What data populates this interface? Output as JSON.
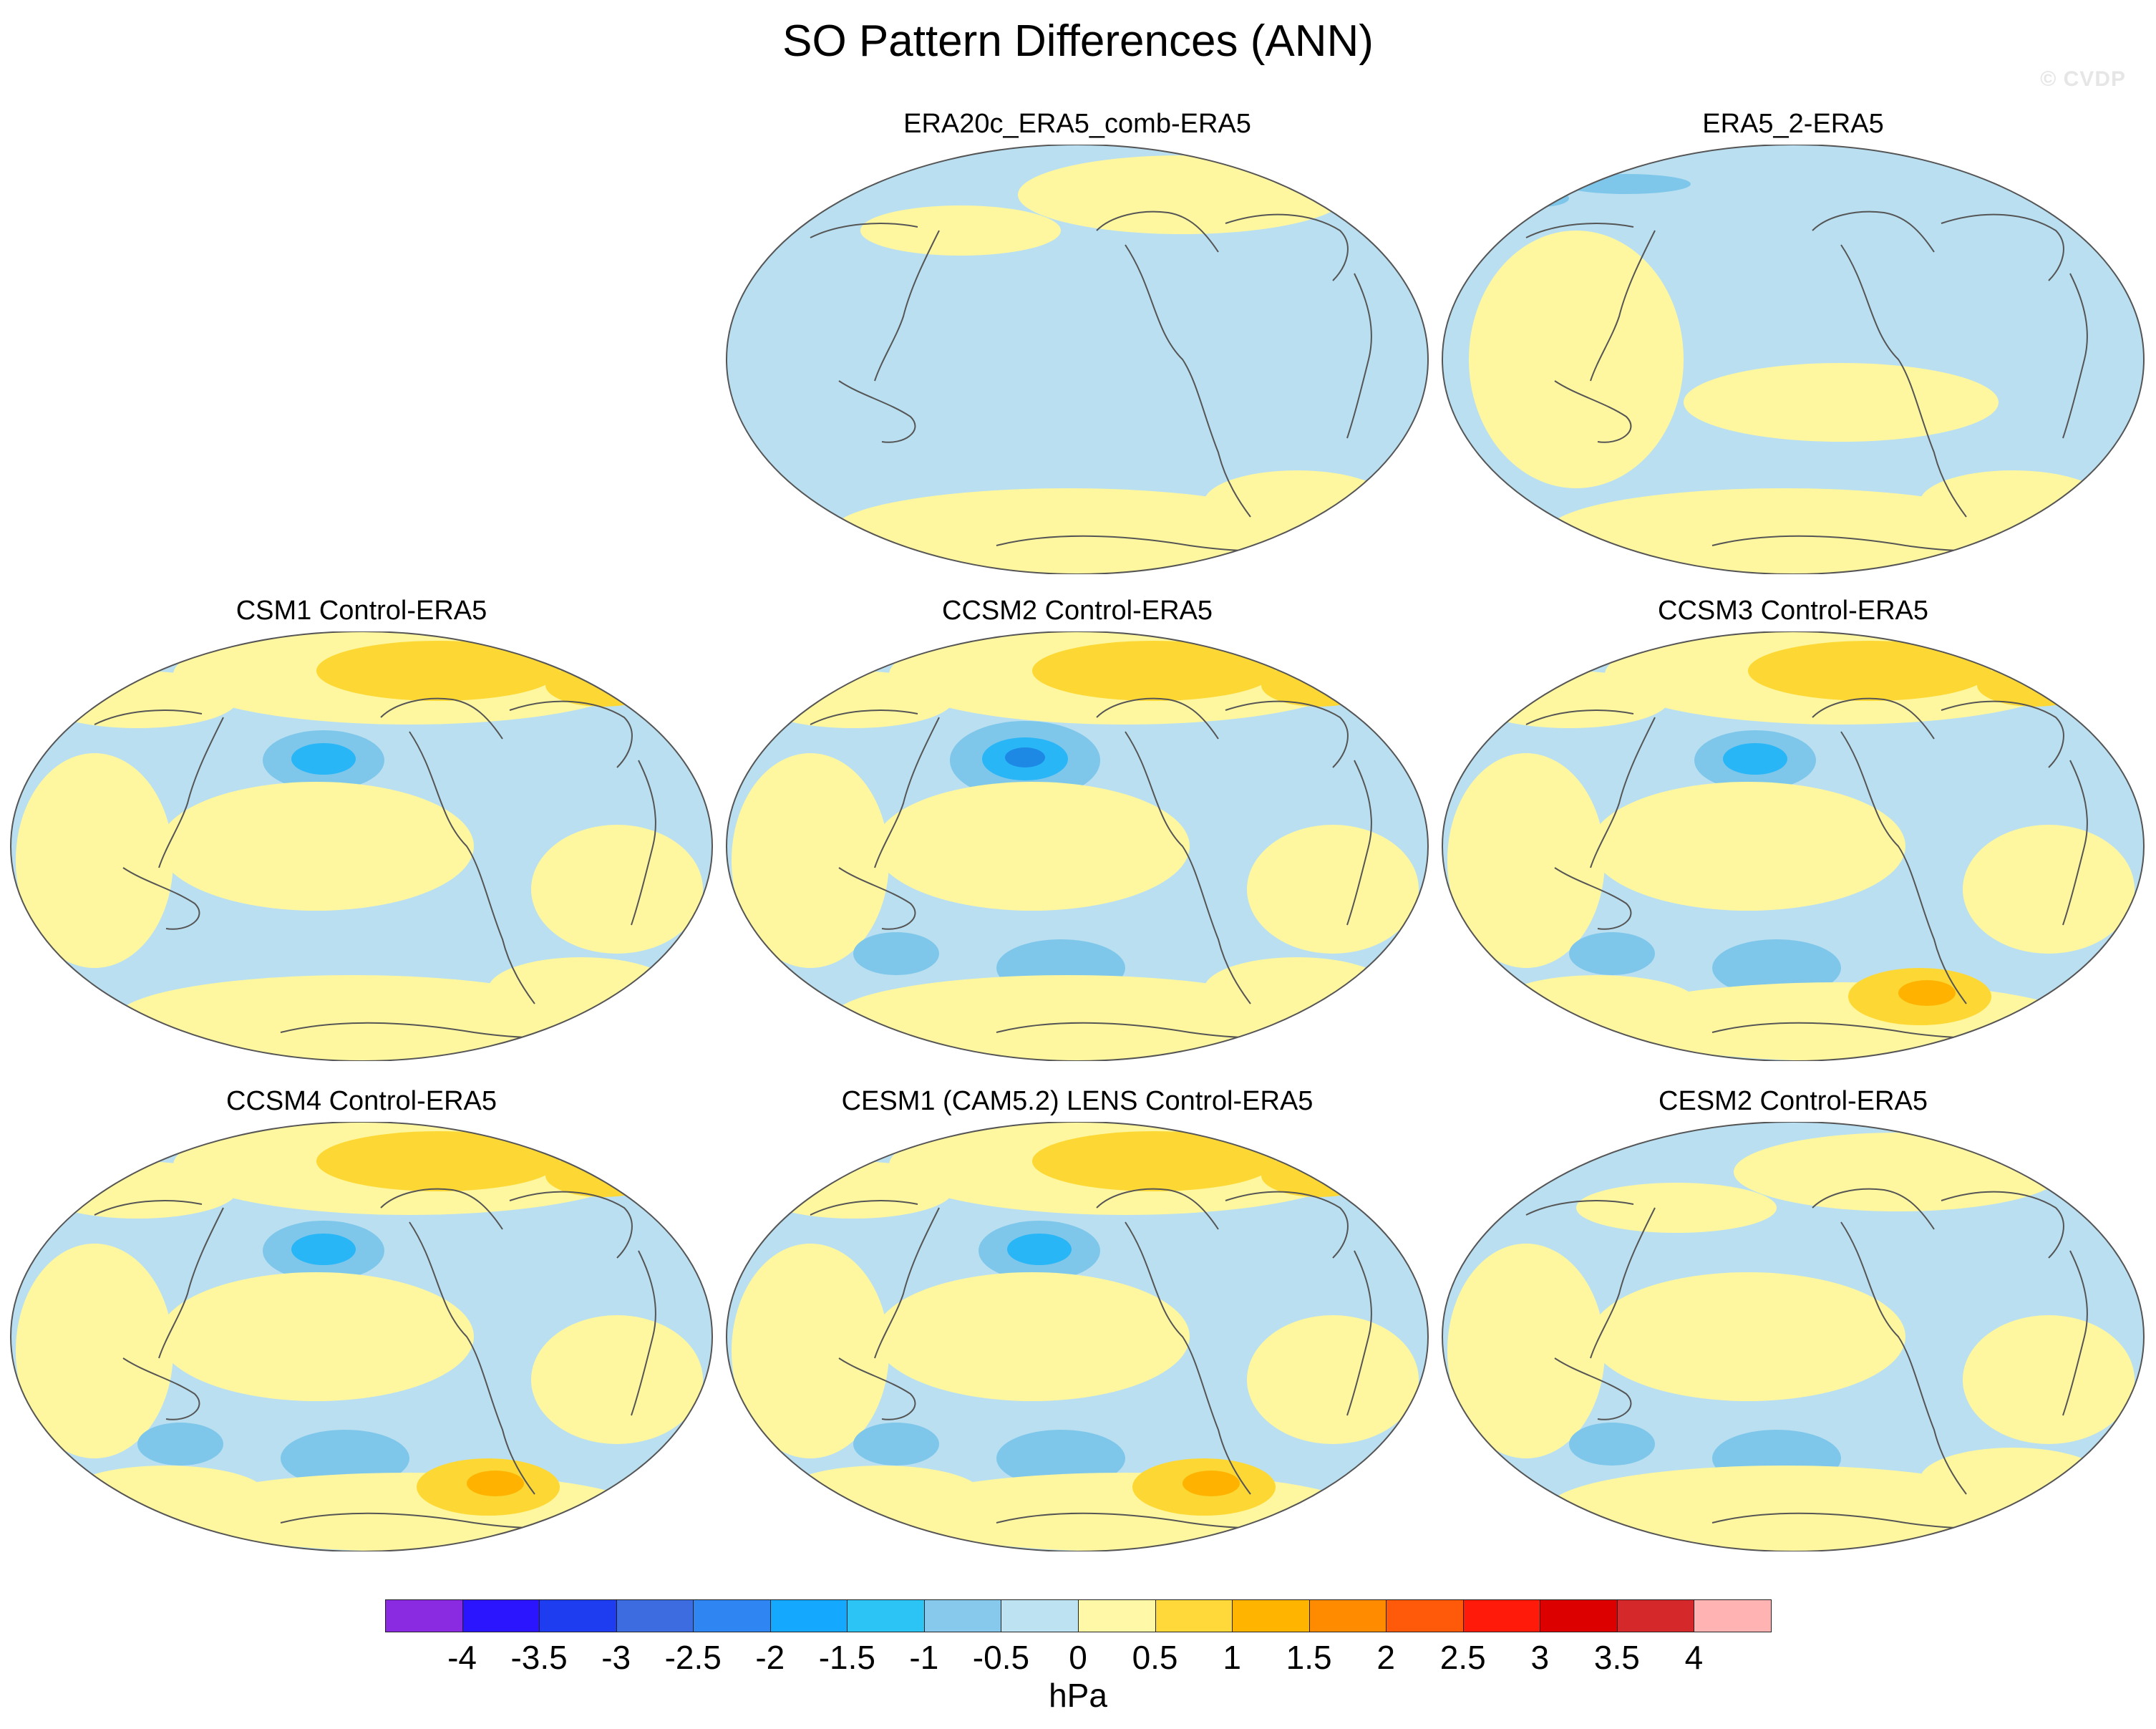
{
  "figure": {
    "title": "SO Pattern Differences (ANN)",
    "watermark": "© CVDP",
    "units": "hPa"
  },
  "colors": {
    "background": "#ffffff",
    "ocean_neg_weak": "#b9dff1",
    "pos_weak": "#fff79f",
    "pos_mid": "#fdd835",
    "pos_strong": "#ffb300",
    "neg_mid": "#7ec7ea",
    "neg_strong": "#29b6f6",
    "neg_core": "#1e88e5",
    "coast": "#555555"
  },
  "colorbar": {
    "levels": [
      "-4",
      "-3.5",
      "-3",
      "-2.5",
      "-2",
      "-1.5",
      "-1",
      "-0.5",
      "0",
      "0.5",
      "1",
      "1.5",
      "2",
      "2.5",
      "3",
      "3.5",
      "4"
    ],
    "colors": [
      "#8a2be2",
      "#2b15ff",
      "#1e3cf0",
      "#3d6be0",
      "#2f86f2",
      "#14a8ff",
      "#2cc3f5",
      "#86c9ec",
      "#bde2f2",
      "#fff8a6",
      "#ffd83a",
      "#ffb400",
      "#ff8c00",
      "#ff5a0a",
      "#ff1a0a",
      "#dd0000",
      "#d4282a",
      "#ffb3b3"
    ]
  },
  "panels": [
    {
      "label": "ERA20c_ERA5_comb-ERA5",
      "features": [
        "pos-north",
        "pos-south"
      ]
    },
    {
      "label": "ERA5_2-ERA5",
      "features": [
        "pos-west",
        "pos-south",
        "neg-north"
      ]
    },
    {
      "label": "CSM1 Control-ERA5",
      "features": [
        "pos-north-strong",
        "neg-npac",
        "pos-tropics",
        "pos-south"
      ]
    },
    {
      "label": "CCSM2 Control-ERA5",
      "features": [
        "pos-north-strong",
        "neg-npac-strong",
        "pos-tropics",
        "neg-south",
        "pos-south"
      ]
    },
    {
      "label": "CCSM3 Control-ERA5",
      "features": [
        "pos-north-strong",
        "neg-npac",
        "pos-tropics",
        "neg-south",
        "pos-south-strong"
      ]
    },
    {
      "label": "CCSM4 Control-ERA5",
      "features": [
        "pos-north-strong",
        "neg-npac",
        "pos-tropics",
        "neg-south",
        "pos-south-strong"
      ]
    },
    {
      "label": "CESM1 (CAM5.2) LENS Control-ERA5",
      "features": [
        "pos-north-strong",
        "neg-npac",
        "pos-tropics",
        "neg-south",
        "pos-south-strong"
      ]
    },
    {
      "label": "CESM2 Control-ERA5",
      "features": [
        "pos-north",
        "pos-tropics",
        "neg-south",
        "pos-south"
      ]
    }
  ]
}
